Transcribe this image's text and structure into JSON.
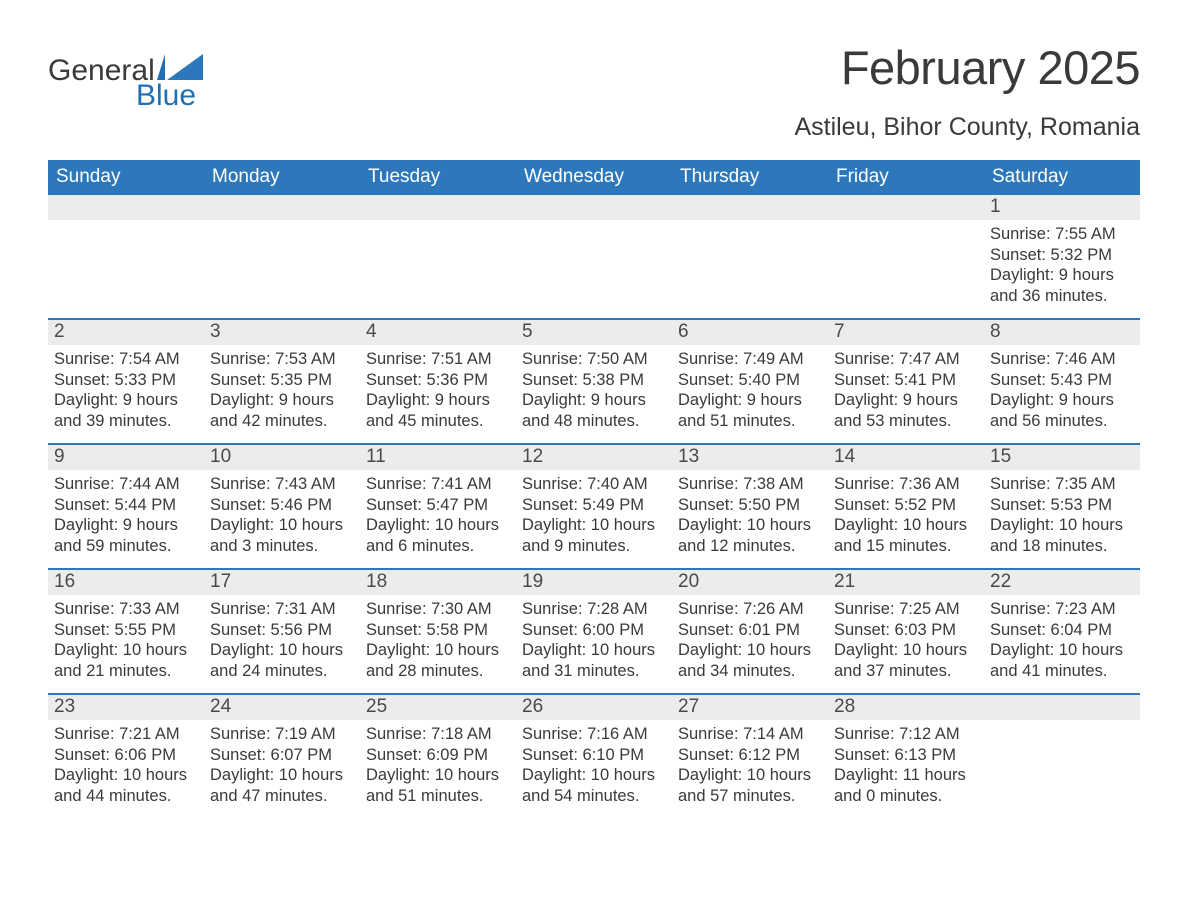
{
  "logo": {
    "word1": "General",
    "word2": "Blue"
  },
  "title": "February 2025",
  "location": "Astileu, Bihor County, Romania",
  "colors": {
    "header_bg": "#2d77bb",
    "header_text": "#ffffff",
    "rule": "#2d77bb",
    "daynum_bg": "#ececec",
    "text": "#3a3a3a",
    "logo_blue": "#1f6fb2",
    "page_bg": "#ffffff"
  },
  "typography": {
    "title_fontsize": 47,
    "location_fontsize": 25,
    "weekday_fontsize": 19,
    "daynum_fontsize": 19,
    "body_fontsize": 16.5,
    "logo_fontsize": 30
  },
  "weekdays": [
    "Sunday",
    "Monday",
    "Tuesday",
    "Wednesday",
    "Thursday",
    "Friday",
    "Saturday"
  ],
  "weeks": [
    [
      null,
      null,
      null,
      null,
      null,
      null,
      {
        "n": "1",
        "sunrise": "Sunrise: 7:55 AM",
        "sunset": "Sunset: 5:32 PM",
        "dl1": "Daylight: 9 hours",
        "dl2": "and 36 minutes."
      }
    ],
    [
      {
        "n": "2",
        "sunrise": "Sunrise: 7:54 AM",
        "sunset": "Sunset: 5:33 PM",
        "dl1": "Daylight: 9 hours",
        "dl2": "and 39 minutes."
      },
      {
        "n": "3",
        "sunrise": "Sunrise: 7:53 AM",
        "sunset": "Sunset: 5:35 PM",
        "dl1": "Daylight: 9 hours",
        "dl2": "and 42 minutes."
      },
      {
        "n": "4",
        "sunrise": "Sunrise: 7:51 AM",
        "sunset": "Sunset: 5:36 PM",
        "dl1": "Daylight: 9 hours",
        "dl2": "and 45 minutes."
      },
      {
        "n": "5",
        "sunrise": "Sunrise: 7:50 AM",
        "sunset": "Sunset: 5:38 PM",
        "dl1": "Daylight: 9 hours",
        "dl2": "and 48 minutes."
      },
      {
        "n": "6",
        "sunrise": "Sunrise: 7:49 AM",
        "sunset": "Sunset: 5:40 PM",
        "dl1": "Daylight: 9 hours",
        "dl2": "and 51 minutes."
      },
      {
        "n": "7",
        "sunrise": "Sunrise: 7:47 AM",
        "sunset": "Sunset: 5:41 PM",
        "dl1": "Daylight: 9 hours",
        "dl2": "and 53 minutes."
      },
      {
        "n": "8",
        "sunrise": "Sunrise: 7:46 AM",
        "sunset": "Sunset: 5:43 PM",
        "dl1": "Daylight: 9 hours",
        "dl2": "and 56 minutes."
      }
    ],
    [
      {
        "n": "9",
        "sunrise": "Sunrise: 7:44 AM",
        "sunset": "Sunset: 5:44 PM",
        "dl1": "Daylight: 9 hours",
        "dl2": "and 59 minutes."
      },
      {
        "n": "10",
        "sunrise": "Sunrise: 7:43 AM",
        "sunset": "Sunset: 5:46 PM",
        "dl1": "Daylight: 10 hours",
        "dl2": "and 3 minutes."
      },
      {
        "n": "11",
        "sunrise": "Sunrise: 7:41 AM",
        "sunset": "Sunset: 5:47 PM",
        "dl1": "Daylight: 10 hours",
        "dl2": "and 6 minutes."
      },
      {
        "n": "12",
        "sunrise": "Sunrise: 7:40 AM",
        "sunset": "Sunset: 5:49 PM",
        "dl1": "Daylight: 10 hours",
        "dl2": "and 9 minutes."
      },
      {
        "n": "13",
        "sunrise": "Sunrise: 7:38 AM",
        "sunset": "Sunset: 5:50 PM",
        "dl1": "Daylight: 10 hours",
        "dl2": "and 12 minutes."
      },
      {
        "n": "14",
        "sunrise": "Sunrise: 7:36 AM",
        "sunset": "Sunset: 5:52 PM",
        "dl1": "Daylight: 10 hours",
        "dl2": "and 15 minutes."
      },
      {
        "n": "15",
        "sunrise": "Sunrise: 7:35 AM",
        "sunset": "Sunset: 5:53 PM",
        "dl1": "Daylight: 10 hours",
        "dl2": "and 18 minutes."
      }
    ],
    [
      {
        "n": "16",
        "sunrise": "Sunrise: 7:33 AM",
        "sunset": "Sunset: 5:55 PM",
        "dl1": "Daylight: 10 hours",
        "dl2": "and 21 minutes."
      },
      {
        "n": "17",
        "sunrise": "Sunrise: 7:31 AM",
        "sunset": "Sunset: 5:56 PM",
        "dl1": "Daylight: 10 hours",
        "dl2": "and 24 minutes."
      },
      {
        "n": "18",
        "sunrise": "Sunrise: 7:30 AM",
        "sunset": "Sunset: 5:58 PM",
        "dl1": "Daylight: 10 hours",
        "dl2": "and 28 minutes."
      },
      {
        "n": "19",
        "sunrise": "Sunrise: 7:28 AM",
        "sunset": "Sunset: 6:00 PM",
        "dl1": "Daylight: 10 hours",
        "dl2": "and 31 minutes."
      },
      {
        "n": "20",
        "sunrise": "Sunrise: 7:26 AM",
        "sunset": "Sunset: 6:01 PM",
        "dl1": "Daylight: 10 hours",
        "dl2": "and 34 minutes."
      },
      {
        "n": "21",
        "sunrise": "Sunrise: 7:25 AM",
        "sunset": "Sunset: 6:03 PM",
        "dl1": "Daylight: 10 hours",
        "dl2": "and 37 minutes."
      },
      {
        "n": "22",
        "sunrise": "Sunrise: 7:23 AM",
        "sunset": "Sunset: 6:04 PM",
        "dl1": "Daylight: 10 hours",
        "dl2": "and 41 minutes."
      }
    ],
    [
      {
        "n": "23",
        "sunrise": "Sunrise: 7:21 AM",
        "sunset": "Sunset: 6:06 PM",
        "dl1": "Daylight: 10 hours",
        "dl2": "and 44 minutes."
      },
      {
        "n": "24",
        "sunrise": "Sunrise: 7:19 AM",
        "sunset": "Sunset: 6:07 PM",
        "dl1": "Daylight: 10 hours",
        "dl2": "and 47 minutes."
      },
      {
        "n": "25",
        "sunrise": "Sunrise: 7:18 AM",
        "sunset": "Sunset: 6:09 PM",
        "dl1": "Daylight: 10 hours",
        "dl2": "and 51 minutes."
      },
      {
        "n": "26",
        "sunrise": "Sunrise: 7:16 AM",
        "sunset": "Sunset: 6:10 PM",
        "dl1": "Daylight: 10 hours",
        "dl2": "and 54 minutes."
      },
      {
        "n": "27",
        "sunrise": "Sunrise: 7:14 AM",
        "sunset": "Sunset: 6:12 PM",
        "dl1": "Daylight: 10 hours",
        "dl2": "and 57 minutes."
      },
      {
        "n": "28",
        "sunrise": "Sunrise: 7:12 AM",
        "sunset": "Sunset: 6:13 PM",
        "dl1": "Daylight: 11 hours",
        "dl2": "and 0 minutes."
      },
      null
    ]
  ]
}
